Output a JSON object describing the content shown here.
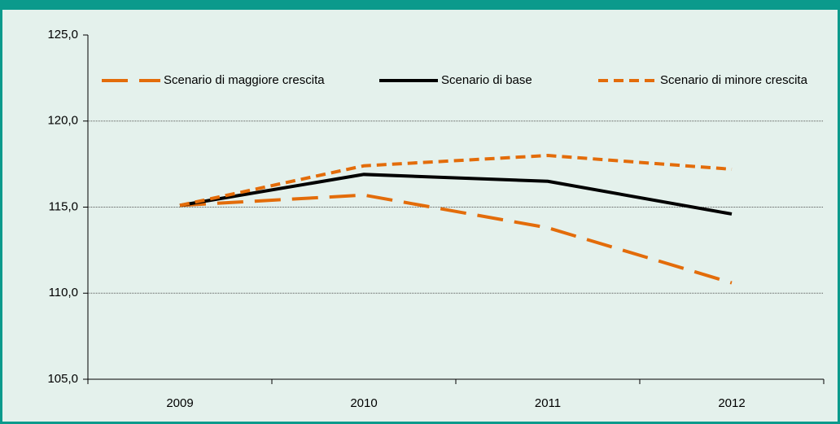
{
  "chart_data": {
    "type": "line",
    "categories": [
      "2009",
      "2010",
      "2011",
      "2012"
    ],
    "series": [
      {
        "name": "Scenario di maggiore crescita",
        "color": "#e36c0a",
        "dash": "long",
        "values": [
          115.1,
          115.7,
          113.8,
          110.6
        ]
      },
      {
        "name": "Scenario di base",
        "color": "#000000",
        "dash": "solid",
        "values": [
          115.1,
          116.9,
          116.5,
          114.6
        ]
      },
      {
        "name": "Scenario di minore crescita",
        "color": "#e36c0a",
        "dash": "short",
        "values": [
          115.1,
          117.4,
          118.0,
          117.2
        ]
      }
    ],
    "ylim": [
      105,
      125
    ],
    "yticks": [
      {
        "value": 105,
        "label": "105,0"
      },
      {
        "value": 110,
        "label": "110,0"
      },
      {
        "value": 115,
        "label": "115,0"
      },
      {
        "value": 120,
        "label": "120,0"
      },
      {
        "value": 125,
        "label": "125,0"
      }
    ],
    "grid": true,
    "legend": "top"
  }
}
